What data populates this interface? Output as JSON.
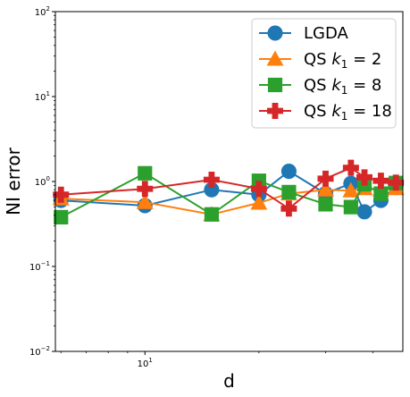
{
  "chart_data": {
    "type": "line",
    "title": "",
    "xlabel": "d",
    "ylabel": "NI error",
    "xscale": "log",
    "yscale": "log",
    "xlim": [
      5.8,
      48.0
    ],
    "ylim": [
      0.01,
      100
    ],
    "x_tick_labels": [
      {
        "value": 10,
        "label": "10^1"
      }
    ],
    "y_tick_labels": [
      {
        "value": 0.01,
        "label": "10^-2"
      },
      {
        "value": 0.1,
        "label": "10^-1"
      },
      {
        "value": 1,
        "label": "10^0"
      },
      {
        "value": 10,
        "label": "10^1"
      },
      {
        "value": 100,
        "label": "10^2"
      }
    ],
    "grid": false,
    "legend_position": "upper-right",
    "series": [
      {
        "name": "LGDA",
        "name_base": "LGDA",
        "name_sub": "",
        "name_rest": "",
        "color": "#1f77b4",
        "marker": "circle",
        "x": [
          6,
          10,
          15,
          20,
          24,
          30,
          35,
          38,
          42,
          46
        ],
        "y": [
          0.6,
          0.52,
          0.8,
          0.7,
          1.32,
          0.72,
          0.95,
          0.44,
          0.6,
          0.88
        ]
      },
      {
        "name": "QS k1 = 2",
        "name_base": "QS k",
        "name_sub": "1",
        "name_rest": " = 2",
        "color": "#ff7f0e",
        "marker": "triangle",
        "x": [
          6,
          10,
          15,
          20,
          24,
          30,
          35,
          38,
          42,
          46
        ],
        "y": [
          0.63,
          0.57,
          0.41,
          0.56,
          0.72,
          0.8,
          0.78,
          0.83,
          0.8,
          0.83
        ]
      },
      {
        "name": "QS k1 = 8",
        "name_base": "QS k",
        "name_sub": "1",
        "name_rest": " = 8",
        "color": "#2ca02c",
        "marker": "square",
        "x": [
          6,
          10,
          15,
          20,
          24,
          30,
          35,
          38,
          42,
          46
        ],
        "y": [
          0.38,
          1.25,
          0.41,
          1.02,
          0.75,
          0.54,
          0.5,
          0.93,
          0.72,
          0.96
        ]
      },
      {
        "name": "QS k1 = 18",
        "name_base": "QS k",
        "name_sub": "1",
        "name_rest": " = 18",
        "color": "#d62728",
        "marker": "plus",
        "x": [
          6,
          10,
          15,
          20,
          24,
          30,
          35,
          38,
          42,
          46
        ],
        "y": [
          0.7,
          0.82,
          1.05,
          0.82,
          0.48,
          1.08,
          1.45,
          1.12,
          1.02,
          0.97
        ]
      }
    ]
  }
}
